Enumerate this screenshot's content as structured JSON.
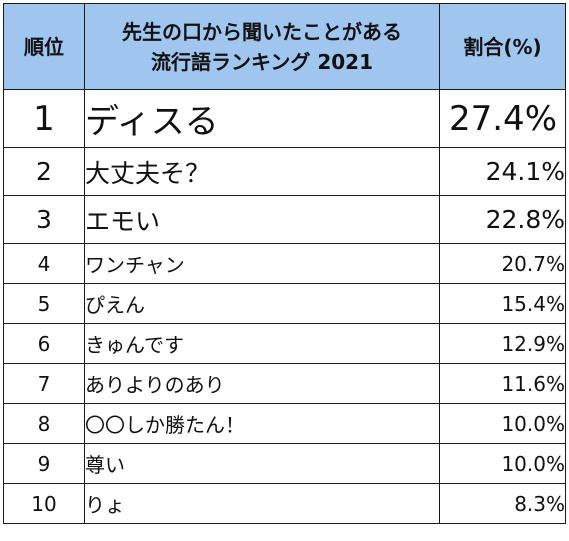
{
  "header": {
    "rank": "順位",
    "phrase_line1": "先生の口から聞いたことがある",
    "phrase_line2": "流行語ランキング 2021",
    "pct": "割合(%)"
  },
  "rows": [
    {
      "rank": "1",
      "phrase": "ディスる",
      "pct": "27.4%"
    },
    {
      "rank": "2",
      "phrase": "大丈夫そ？",
      "pct": "24.1%"
    },
    {
      "rank": "3",
      "phrase": "エモい",
      "pct": "22.8%"
    },
    {
      "rank": "4",
      "phrase": "ワンチャン",
      "pct": "20.7%"
    },
    {
      "rank": "5",
      "phrase": "ぴえん",
      "pct": "15.4%"
    },
    {
      "rank": "6",
      "phrase": "きゅんです",
      "pct": "12.9%"
    },
    {
      "rank": "7",
      "phrase": "ありよりのあり",
      "pct": "11.6%"
    },
    {
      "rank": "8",
      "phrase": "〇〇しか勝たん！",
      "pct": "10.0%"
    },
    {
      "rank": "9",
      "phrase": "尊い",
      "pct": "10.0%"
    },
    {
      "rank": "10",
      "phrase": "りょ",
      "pct": "8.3%"
    }
  ]
}
